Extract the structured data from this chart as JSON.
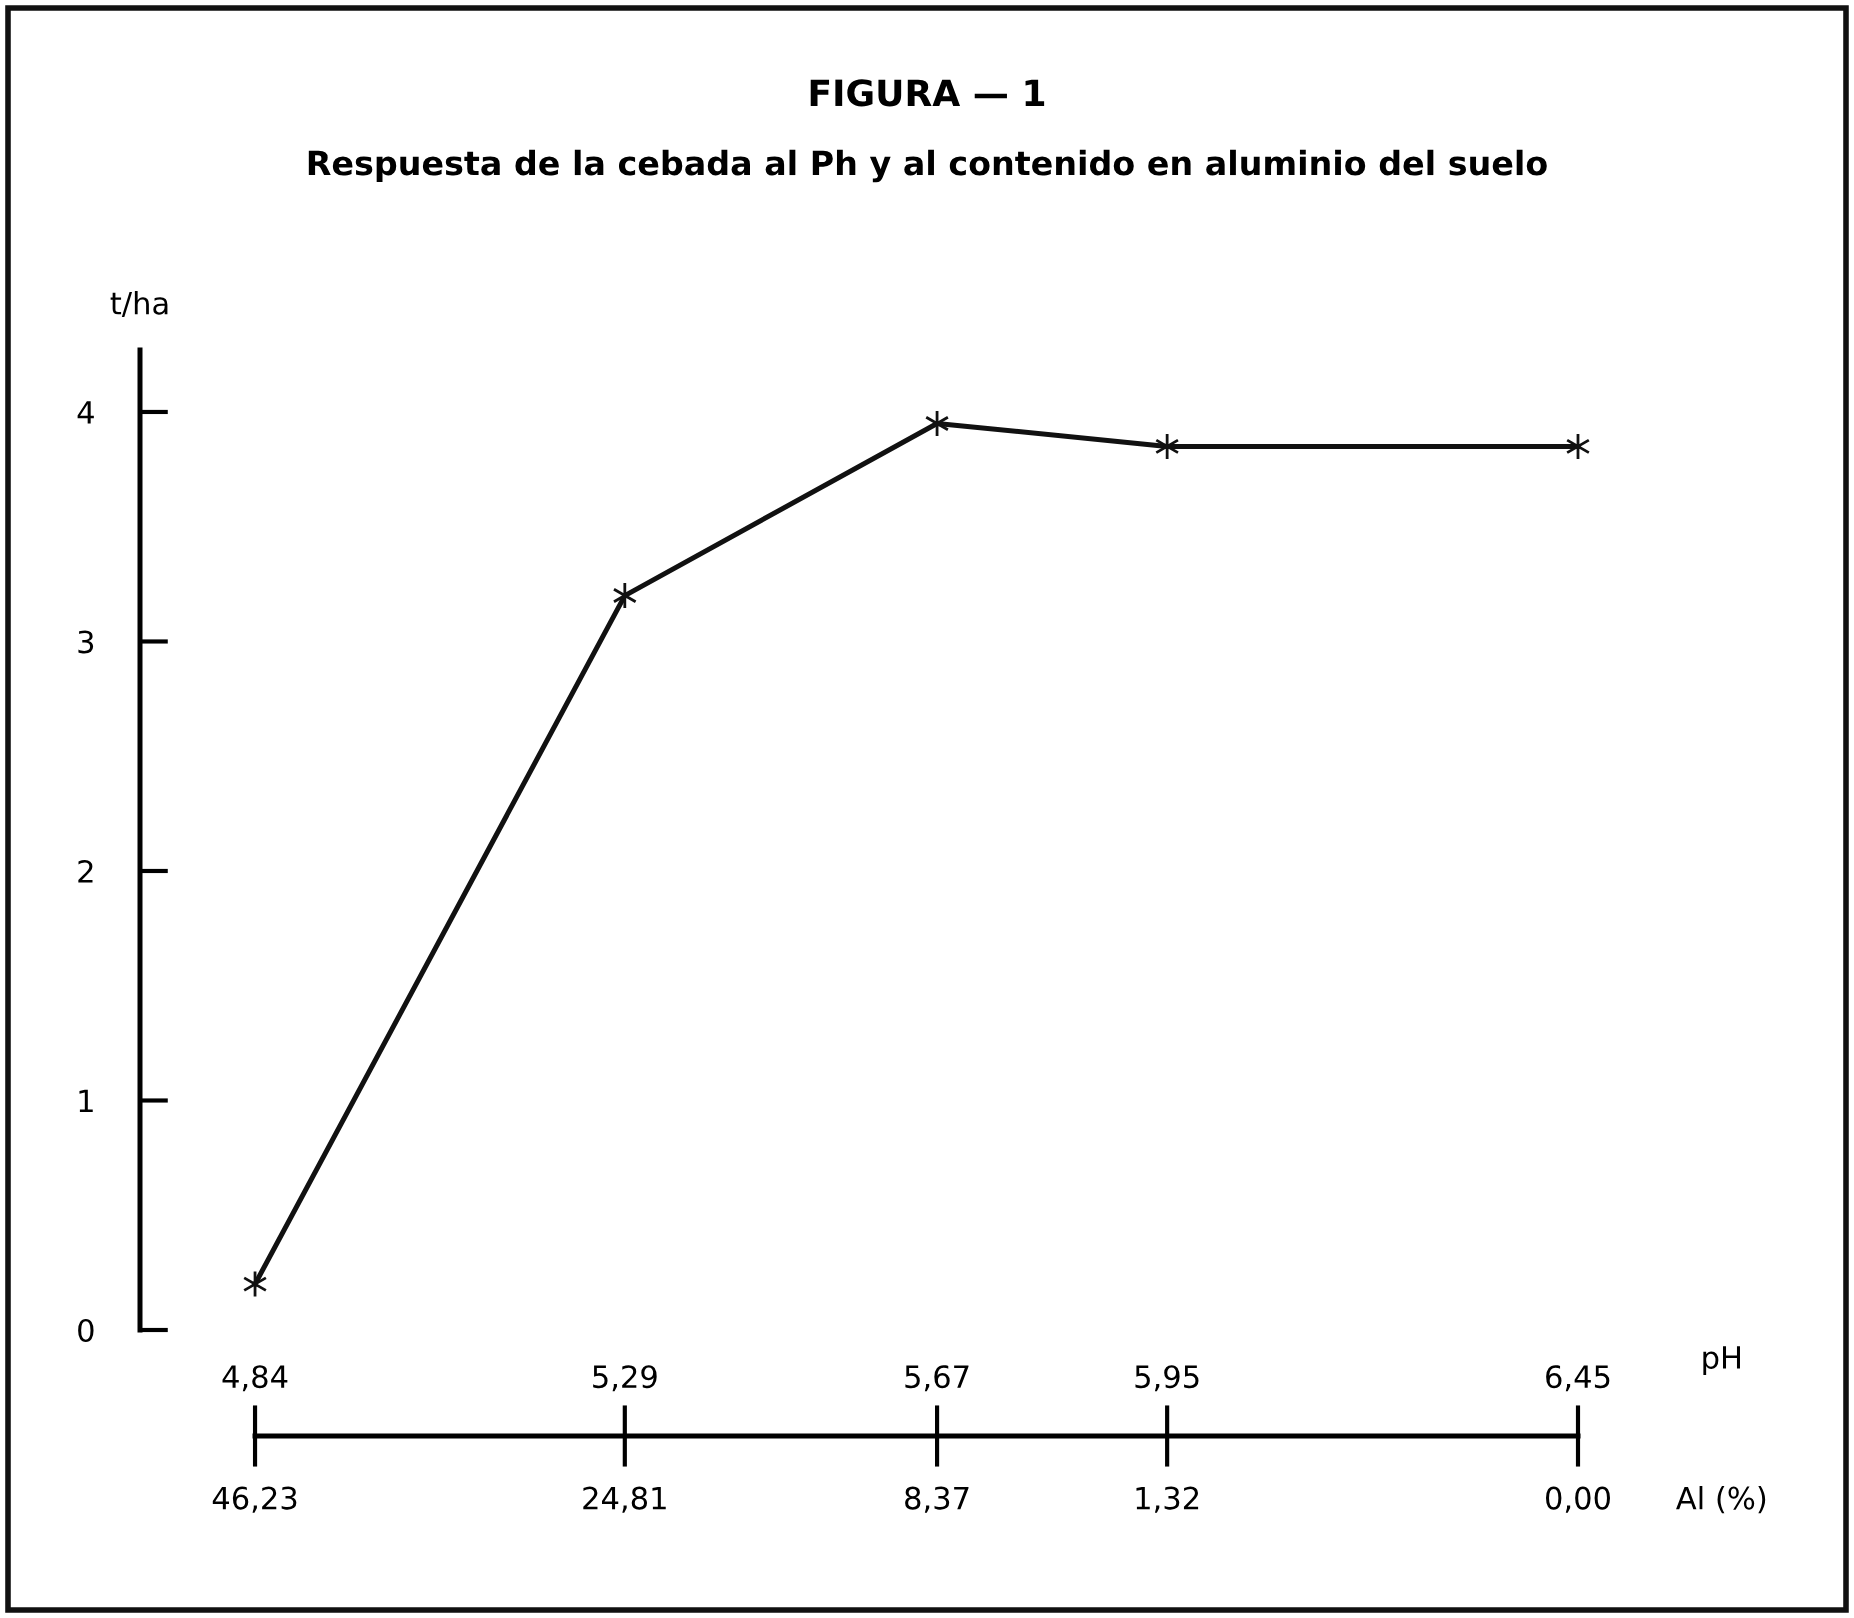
{
  "chart_data": {
    "type": "line",
    "title": "FIGURA — 1",
    "subtitle": "Respuesta de la cebada al Ph y al contenido en aluminio del suelo",
    "ylabel": "t/ha",
    "xlabel": "pH",
    "x": [
      4.84,
      5.29,
      5.67,
      5.95,
      6.45
    ],
    "series": [
      {
        "color": "#111111",
        "values": [
          0.2,
          3.2,
          3.95,
          3.85,
          3.85
        ]
      }
    ],
    "xlim": [
      4.7,
      6.45
    ],
    "xticks": [
      {
        "value": 4.84,
        "label": "4,84"
      },
      {
        "value": 5.29,
        "label": "5,29"
      },
      {
        "value": 5.67,
        "label": "5,67"
      },
      {
        "value": 5.95,
        "label": "5,95"
      },
      {
        "value": 6.45,
        "label": "6,45"
      }
    ],
    "annotations": [
      "46,23",
      "24,81",
      "8,37",
      "1,32",
      "0,00",
      "Al (%)"
    ],
    "ylim": [
      0,
      4.27
    ],
    "yticks": [
      0,
      1,
      2,
      3,
      4
    ],
    "marker": "cross",
    "line_style": "solid",
    "grid": false,
    "legend": false
  }
}
